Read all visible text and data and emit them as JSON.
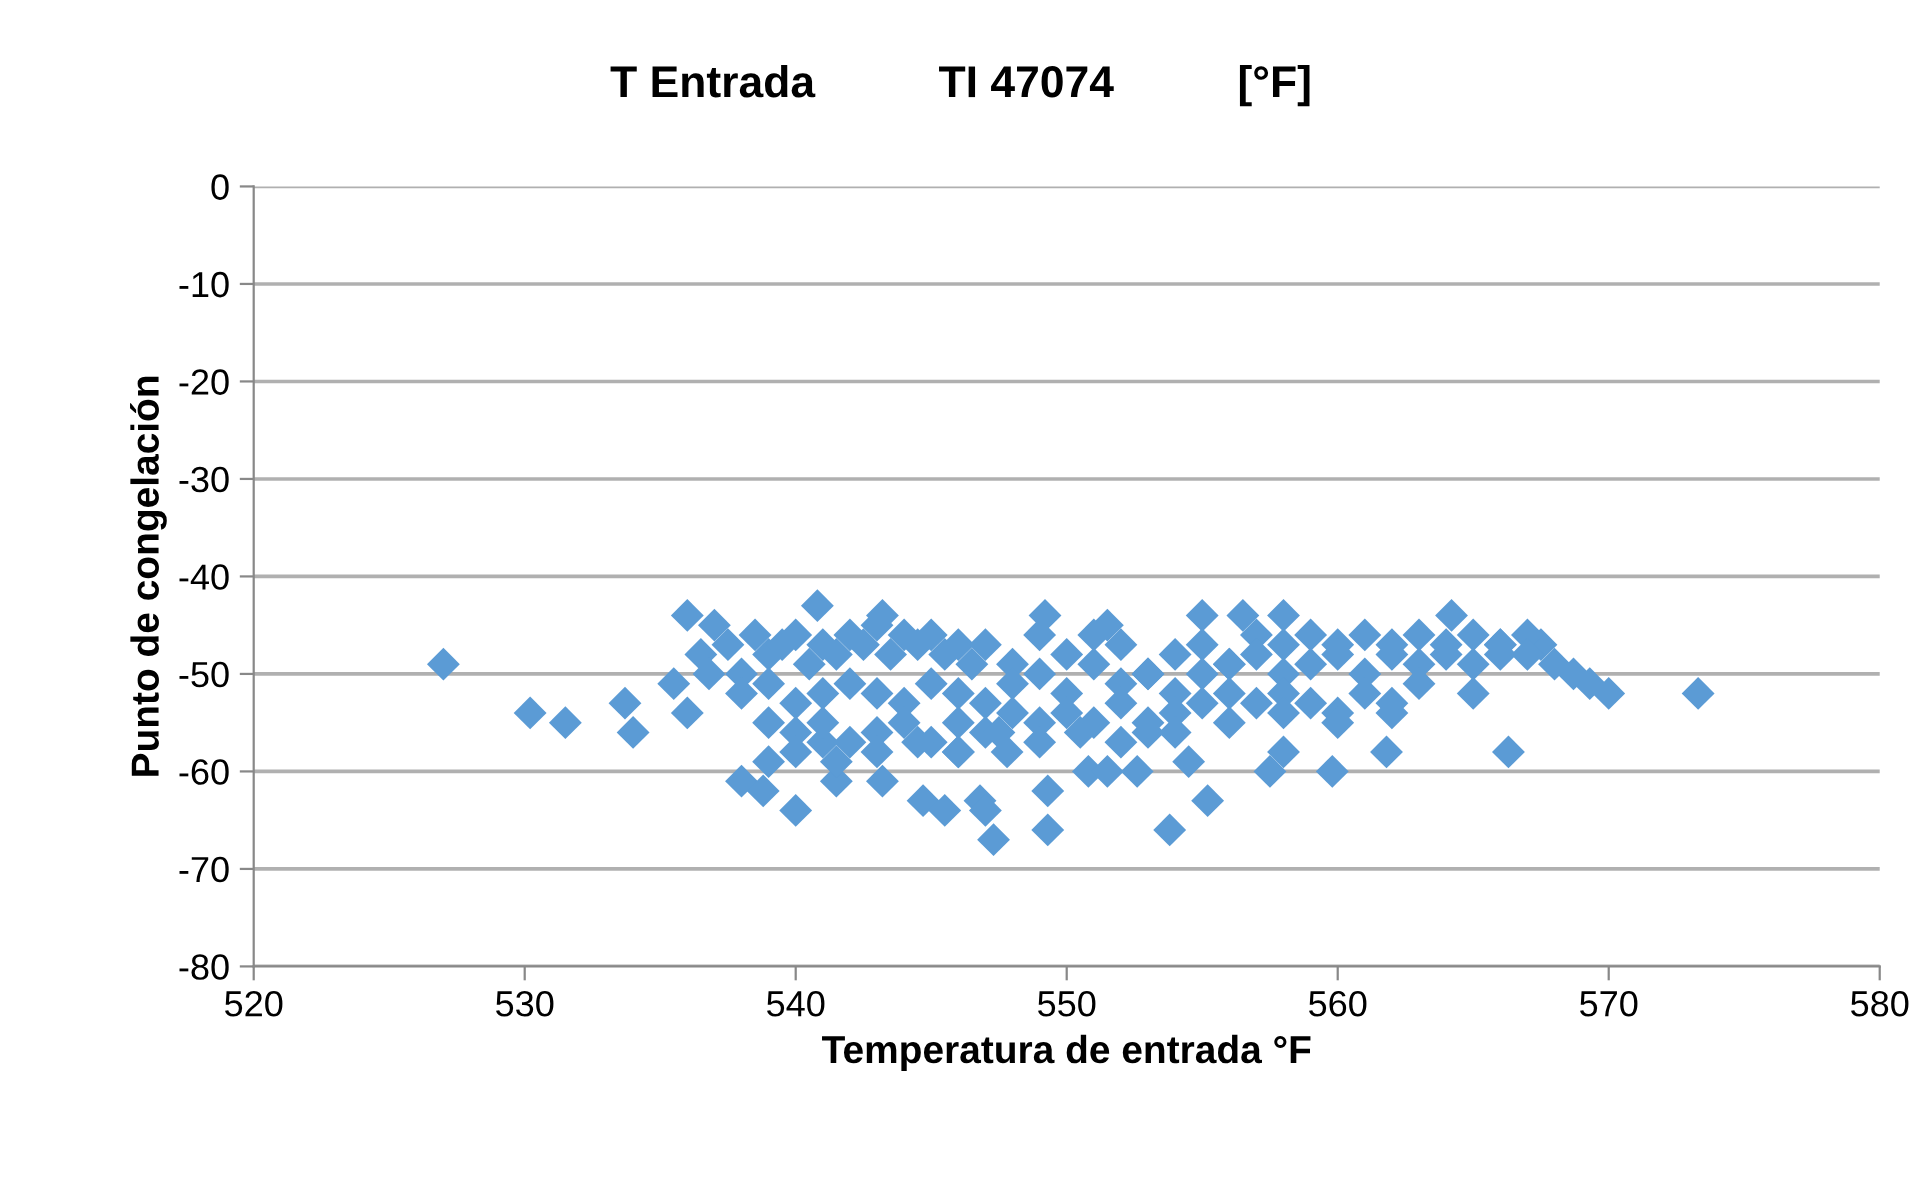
{
  "chart_data": {
    "type": "scatter",
    "title": "T Entrada          TI 47074          [°F]",
    "xlabel": "Temperatura de entrada °F",
    "ylabel": "Punto de congelación",
    "xlim": [
      520,
      580
    ],
    "xticks": [
      520,
      530,
      540,
      550,
      560,
      570,
      580
    ],
    "ylim": [
      -80,
      0
    ],
    "yticks": [
      0,
      -10,
      -20,
      -30,
      -40,
      -50,
      -60,
      -70,
      -80
    ],
    "grid": "y",
    "marker": "diamond",
    "series": [
      {
        "color": "#5b9bd5",
        "x": [
          527,
          530.2,
          531.5,
          533.7,
          534,
          535.5,
          536,
          536,
          536.5,
          537,
          536.8,
          538,
          538.8,
          539,
          540,
          540.8,
          541.5,
          541,
          543.2,
          543.2,
          544.7,
          545.5,
          546.8,
          547.3,
          547,
          546,
          547.8,
          549.2,
          549.3,
          549.3,
          550.8,
          551.5,
          552.6,
          551.5,
          553,
          553.8,
          554.5,
          555.2,
          555,
          556.5,
          557.5,
          558,
          558,
          559.8,
          561.8,
          564.2,
          566.3,
          573.3,
          570,
          569.3,
          568.7,
          567.5,
          566,
          565,
          537.5,
          538,
          538.5,
          539,
          539.5,
          540,
          540.5,
          541,
          541.5,
          542,
          542.5,
          543,
          543.5,
          544,
          544.5,
          545,
          545.5,
          546,
          546.5,
          547,
          548,
          549,
          550,
          551,
          552,
          553,
          554,
          555,
          556,
          557,
          558,
          559,
          560,
          561,
          562,
          563,
          564,
          565,
          566,
          567,
          538,
          539,
          540,
          541,
          542,
          543,
          544,
          545,
          546,
          547,
          548,
          549,
          550,
          551,
          552,
          553,
          554,
          555,
          556,
          557,
          558,
          559,
          560,
          561,
          562,
          563,
          564,
          565,
          566,
          567,
          568,
          539,
          540,
          541,
          542,
          543,
          544,
          545,
          546,
          547,
          548,
          549,
          550,
          551,
          552,
          553,
          554,
          555,
          556,
          557,
          558,
          559,
          560,
          561,
          562,
          563,
          540,
          541.5,
          543,
          544.5,
          546,
          547.5,
          549,
          550.5,
          552,
          554,
          556,
          558,
          560,
          562
        ],
        "values": [
          -49,
          -54,
          -55,
          -53,
          -56,
          -51,
          -44,
          -54,
          -48,
          -45,
          -50,
          -61,
          -62,
          -59,
          -64,
          -43,
          -61,
          -57,
          -44,
          -61,
          -63,
          -64,
          -63,
          -67,
          -64,
          -58,
          -58,
          -44,
          -62,
          -66,
          -60,
          -60,
          -60,
          -45,
          -56,
          -66,
          -59,
          -63,
          -44,
          -44,
          -60,
          -44,
          -58,
          -60,
          -58,
          -44,
          -58,
          -52,
          -52,
          -51,
          -50,
          -47,
          -47,
          -52,
          -47,
          -50,
          -46,
          -48,
          -47,
          -46,
          -49,
          -47,
          -48,
          -46,
          -47,
          -45,
          -48,
          -46,
          -47,
          -46,
          -48,
          -47,
          -49,
          -47,
          -49,
          -46,
          -48,
          -46,
          -47,
          -50,
          -48,
          -47,
          -49,
          -46,
          -47,
          -46,
          -47,
          -46,
          -47,
          -46,
          -47,
          -46,
          -47,
          -46,
          -52,
          -51,
          -53,
          -52,
          -51,
          -52,
          -53,
          -51,
          -52,
          -53,
          -51,
          -50,
          -52,
          -49,
          -51,
          -50,
          -52,
          -50,
          -49,
          -48,
          -50,
          -49,
          -48,
          -50,
          -48,
          -49,
          -48,
          -49,
          -48,
          -48,
          -49,
          -55,
          -56,
          -55,
          -57,
          -56,
          -55,
          -57,
          -55,
          -56,
          -54,
          -55,
          -54,
          -55,
          -53,
          -55,
          -54,
          -53,
          -52,
          -53,
          -52,
          -53,
          -54,
          -52,
          -53,
          -51,
          -58,
          -59,
          -58,
          -57,
          -58,
          -56,
          -57,
          -56,
          -57,
          -56,
          -55,
          -54,
          -55,
          -54
        ]
      }
    ]
  }
}
